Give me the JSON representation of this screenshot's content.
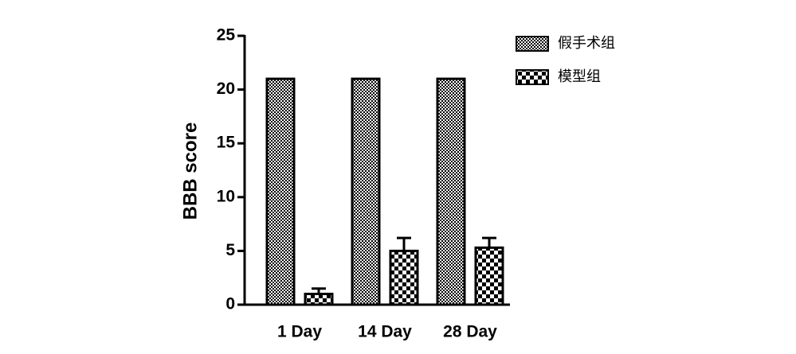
{
  "chart_data": {
    "type": "bar",
    "y_label": "BBB score",
    "categories": [
      "1 Day",
      "14 Day",
      "28 Day"
    ],
    "series": [
      {
        "name": "假手术组",
        "color": "#000000",
        "pattern": "fine-checker",
        "values": [
          21,
          21,
          21
        ],
        "errors": [
          0,
          0,
          0
        ]
      },
      {
        "name": "模型组",
        "color": "#000000",
        "pattern": "coarse-checker",
        "values": [
          1.0,
          5.0,
          5.3
        ],
        "errors": [
          0.5,
          1.2,
          0.9
        ]
      }
    ],
    "ylim": [
      0,
      25
    ],
    "yticks": [
      0,
      5,
      10,
      15,
      20,
      25
    ],
    "legend": "top-right"
  }
}
